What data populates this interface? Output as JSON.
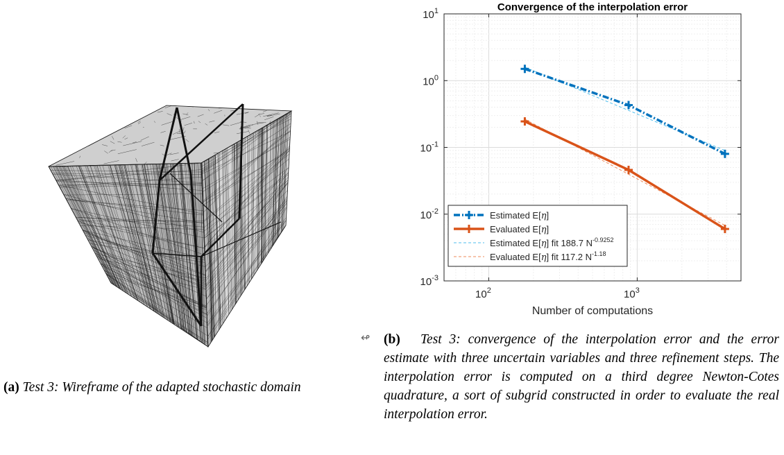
{
  "figure_a": {
    "caption_label": "(a)",
    "caption_text": "Test 3: Wireframe of the adapted stochastic domain"
  },
  "figure_b": {
    "caption_label": "(b)",
    "caption_text": "Test 3: convergence of the interpolation error and the error estimate with three uncertain variables and three refinement steps. The interpolation error is computed on a third degree Newton-Cotes quadrature, a sort of subgrid constructed in order to evaluate the real interpolation error."
  },
  "margin_mark": "↫",
  "colors": {
    "estimated": "#0072BD",
    "evaluated": "#D95319",
    "fit_estimated": "#4DBEEE",
    "fit_evaluated": "#EE8A5A"
  },
  "chart_data": {
    "type": "line",
    "title": "Convergence of the interpolation error",
    "xlabel": "Number of computations",
    "ylabel": "",
    "xscale": "log",
    "yscale": "log",
    "xlim": [
      50,
      5000
    ],
    "ylim": [
      0.001,
      10
    ],
    "grid": true,
    "legend_position": "bottom-left",
    "x_ticks": [
      {
        "value": 100,
        "base": "10",
        "exp": "2"
      },
      {
        "value": 1000,
        "base": "10",
        "exp": "3"
      }
    ],
    "y_ticks": [
      {
        "value": 10,
        "base": "10",
        "exp": "1"
      },
      {
        "value": 1,
        "base": "10",
        "exp": "0"
      },
      {
        "value": 0.1,
        "base": "10",
        "exp": "-1"
      },
      {
        "value": 0.01,
        "base": "10",
        "exp": "-2"
      },
      {
        "value": 0.001,
        "base": "10",
        "exp": "-3"
      }
    ],
    "series": [
      {
        "name": "Estimated E[η]",
        "name_base": "Estimated E[",
        "name_sym": "η",
        "name_tail": "]",
        "style": "dashdot",
        "marker": "plus",
        "x": [
          175,
          875,
          3900
        ],
        "y": [
          1.5,
          0.43,
          0.08
        ]
      },
      {
        "name": "Evaluated E[η]",
        "name_base": "Evaluated E[",
        "name_sym": "η",
        "name_tail": "]",
        "style": "solid",
        "marker": "plus",
        "x": [
          175,
          875,
          3900
        ],
        "y": [
          0.245,
          0.046,
          0.006
        ]
      },
      {
        "name": "Estimated E[η] fit 188.7 N^-0.9252",
        "name_base": "Estimated E[",
        "name_sym": "η",
        "name_tail": "] fit 188.7 N",
        "name_exp": "-0.9252",
        "style": "dashed",
        "marker": "none",
        "fit": {
          "coef": 188.7,
          "power": -0.9252
        },
        "x": [
          175,
          3900
        ]
      },
      {
        "name": "Evaluated E[η] fit 117.2 N^-1.18",
        "name_base": "Evaluated E[",
        "name_sym": "η",
        "name_tail": "] fit 117.2 N",
        "name_exp": "-1.18",
        "style": "dashed",
        "marker": "none",
        "fit": {
          "coef": 117.2,
          "power": -1.18
        },
        "x": [
          175,
          3900
        ]
      }
    ]
  }
}
